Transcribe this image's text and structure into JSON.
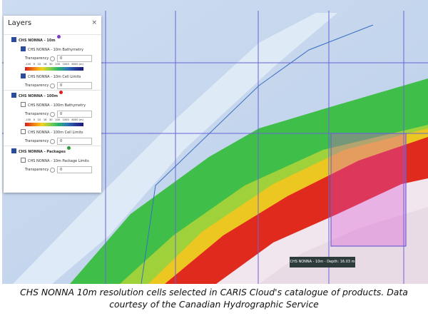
{
  "panel": {
    "title": "Layers",
    "close": "×",
    "groups": [
      {
        "name": "CHS NONNA - 10m",
        "items": [
          {
            "name": "CHS NONNA - 10m Bathymetry",
            "transparency": "Transparency",
            "value": 0,
            "legend": [
              "-100",
              "0",
              "10",
              "16",
              "30",
              "100",
              "1000",
              "8000 (m)"
            ]
          },
          {
            "name": "CHS NONNA - 10m Cell Limits",
            "transparency": "Transparency",
            "value": 0
          }
        ]
      },
      {
        "name": "CHS NONNA - 100m",
        "items": [
          {
            "name": "CHS NONNA - 100m Bathymetry",
            "transparency": "Transparency",
            "value": 0,
            "legend": [
              "-100",
              "0",
              "10",
              "16",
              "30",
              "100",
              "1000",
              "8000 (m)"
            ]
          },
          {
            "name": "CHS NONNA - 100m Cell Limits",
            "transparency": "Transparency",
            "value": 0
          }
        ]
      },
      {
        "name": "CHS NONNA - Packages",
        "items": [
          {
            "name": "CHS NONNA - 10m Package Limits",
            "transparency": "Transparency",
            "value": 0
          }
        ]
      }
    ]
  },
  "tooltip": "CHS NONNA - 10m - Depth: 16.03 m",
  "caption": "CHS NONNA 10m resolution cells selected in CARIS Cloud's catalogue of products. Data courtesy of the Canadian Hydrographic Service"
}
